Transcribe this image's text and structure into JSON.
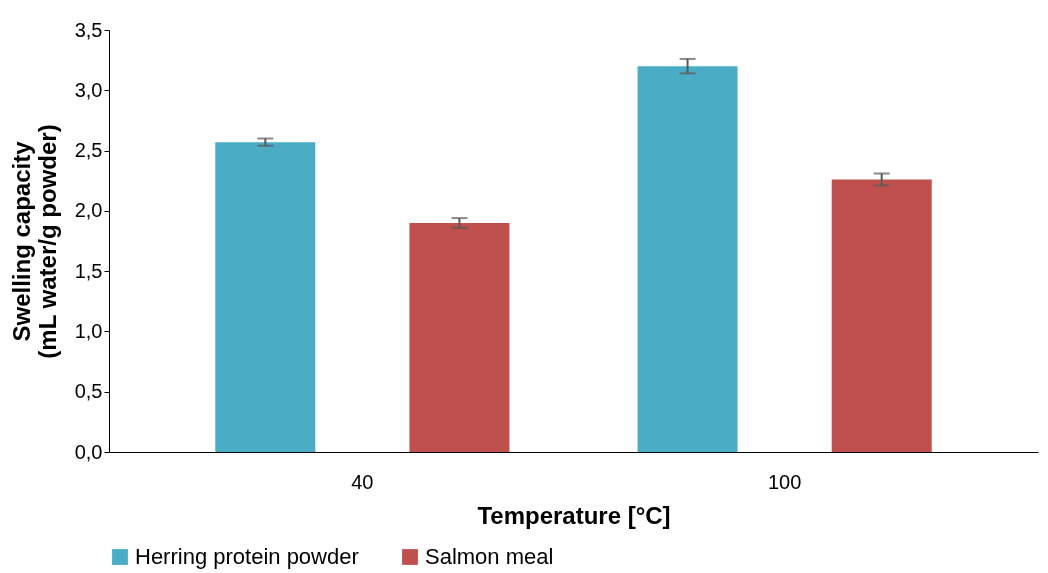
{
  "chart_data": {
    "type": "bar",
    "xlabel": "Temperature [°C]",
    "ylabel": "Swelling capacity\n(mL water/g powder)",
    "categories": [
      "40",
      "100"
    ],
    "series": [
      {
        "name": "Herring protein powder",
        "color": "#4bacc6",
        "values": [
          2.57,
          3.2
        ],
        "errors": [
          0.03,
          0.06
        ]
      },
      {
        "name": "Salmon meal",
        "color": "#c0504d",
        "values": [
          1.9,
          2.26
        ],
        "errors": [
          0.04,
          0.05
        ]
      }
    ],
    "ylim": [
      0,
      3.5
    ],
    "yticks": [
      {
        "value": 0,
        "label": "0,0"
      },
      {
        "value": 0.5,
        "label": "0,5"
      },
      {
        "value": 1,
        "label": "1,0"
      },
      {
        "value": 1.5,
        "label": "1,5"
      },
      {
        "value": 2,
        "label": "2,0"
      },
      {
        "value": 2.5,
        "label": "2,5"
      },
      {
        "value": 3,
        "label": "3,0"
      },
      {
        "value": 3.5,
        "label": "3,5"
      }
    ],
    "grid": false,
    "legend": "bottom"
  }
}
